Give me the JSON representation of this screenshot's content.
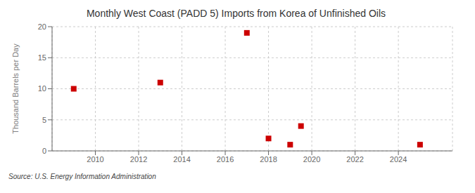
{
  "chart_data": {
    "type": "scatter",
    "title": "Monthly West Coast (PADD 5) Imports from Korea of Unfinished Oils",
    "ylabel": "Thousand Barrels per Day",
    "source": "Source: U.S. Energy Information Administration",
    "x": [
      2009,
      2013,
      2017,
      2018,
      2019,
      2019.5,
      2025
    ],
    "values": [
      10,
      11,
      19,
      2,
      1,
      4,
      1
    ],
    "color": "#cc0000",
    "marker": "square",
    "xlim": [
      2008,
      2026.5
    ],
    "ylim": [
      0,
      20
    ],
    "xticks": [
      2010,
      2012,
      2014,
      2016,
      2018,
      2020,
      2022,
      2024
    ],
    "yticks": [
      0,
      5,
      10,
      15,
      20
    ],
    "grid": true
  }
}
